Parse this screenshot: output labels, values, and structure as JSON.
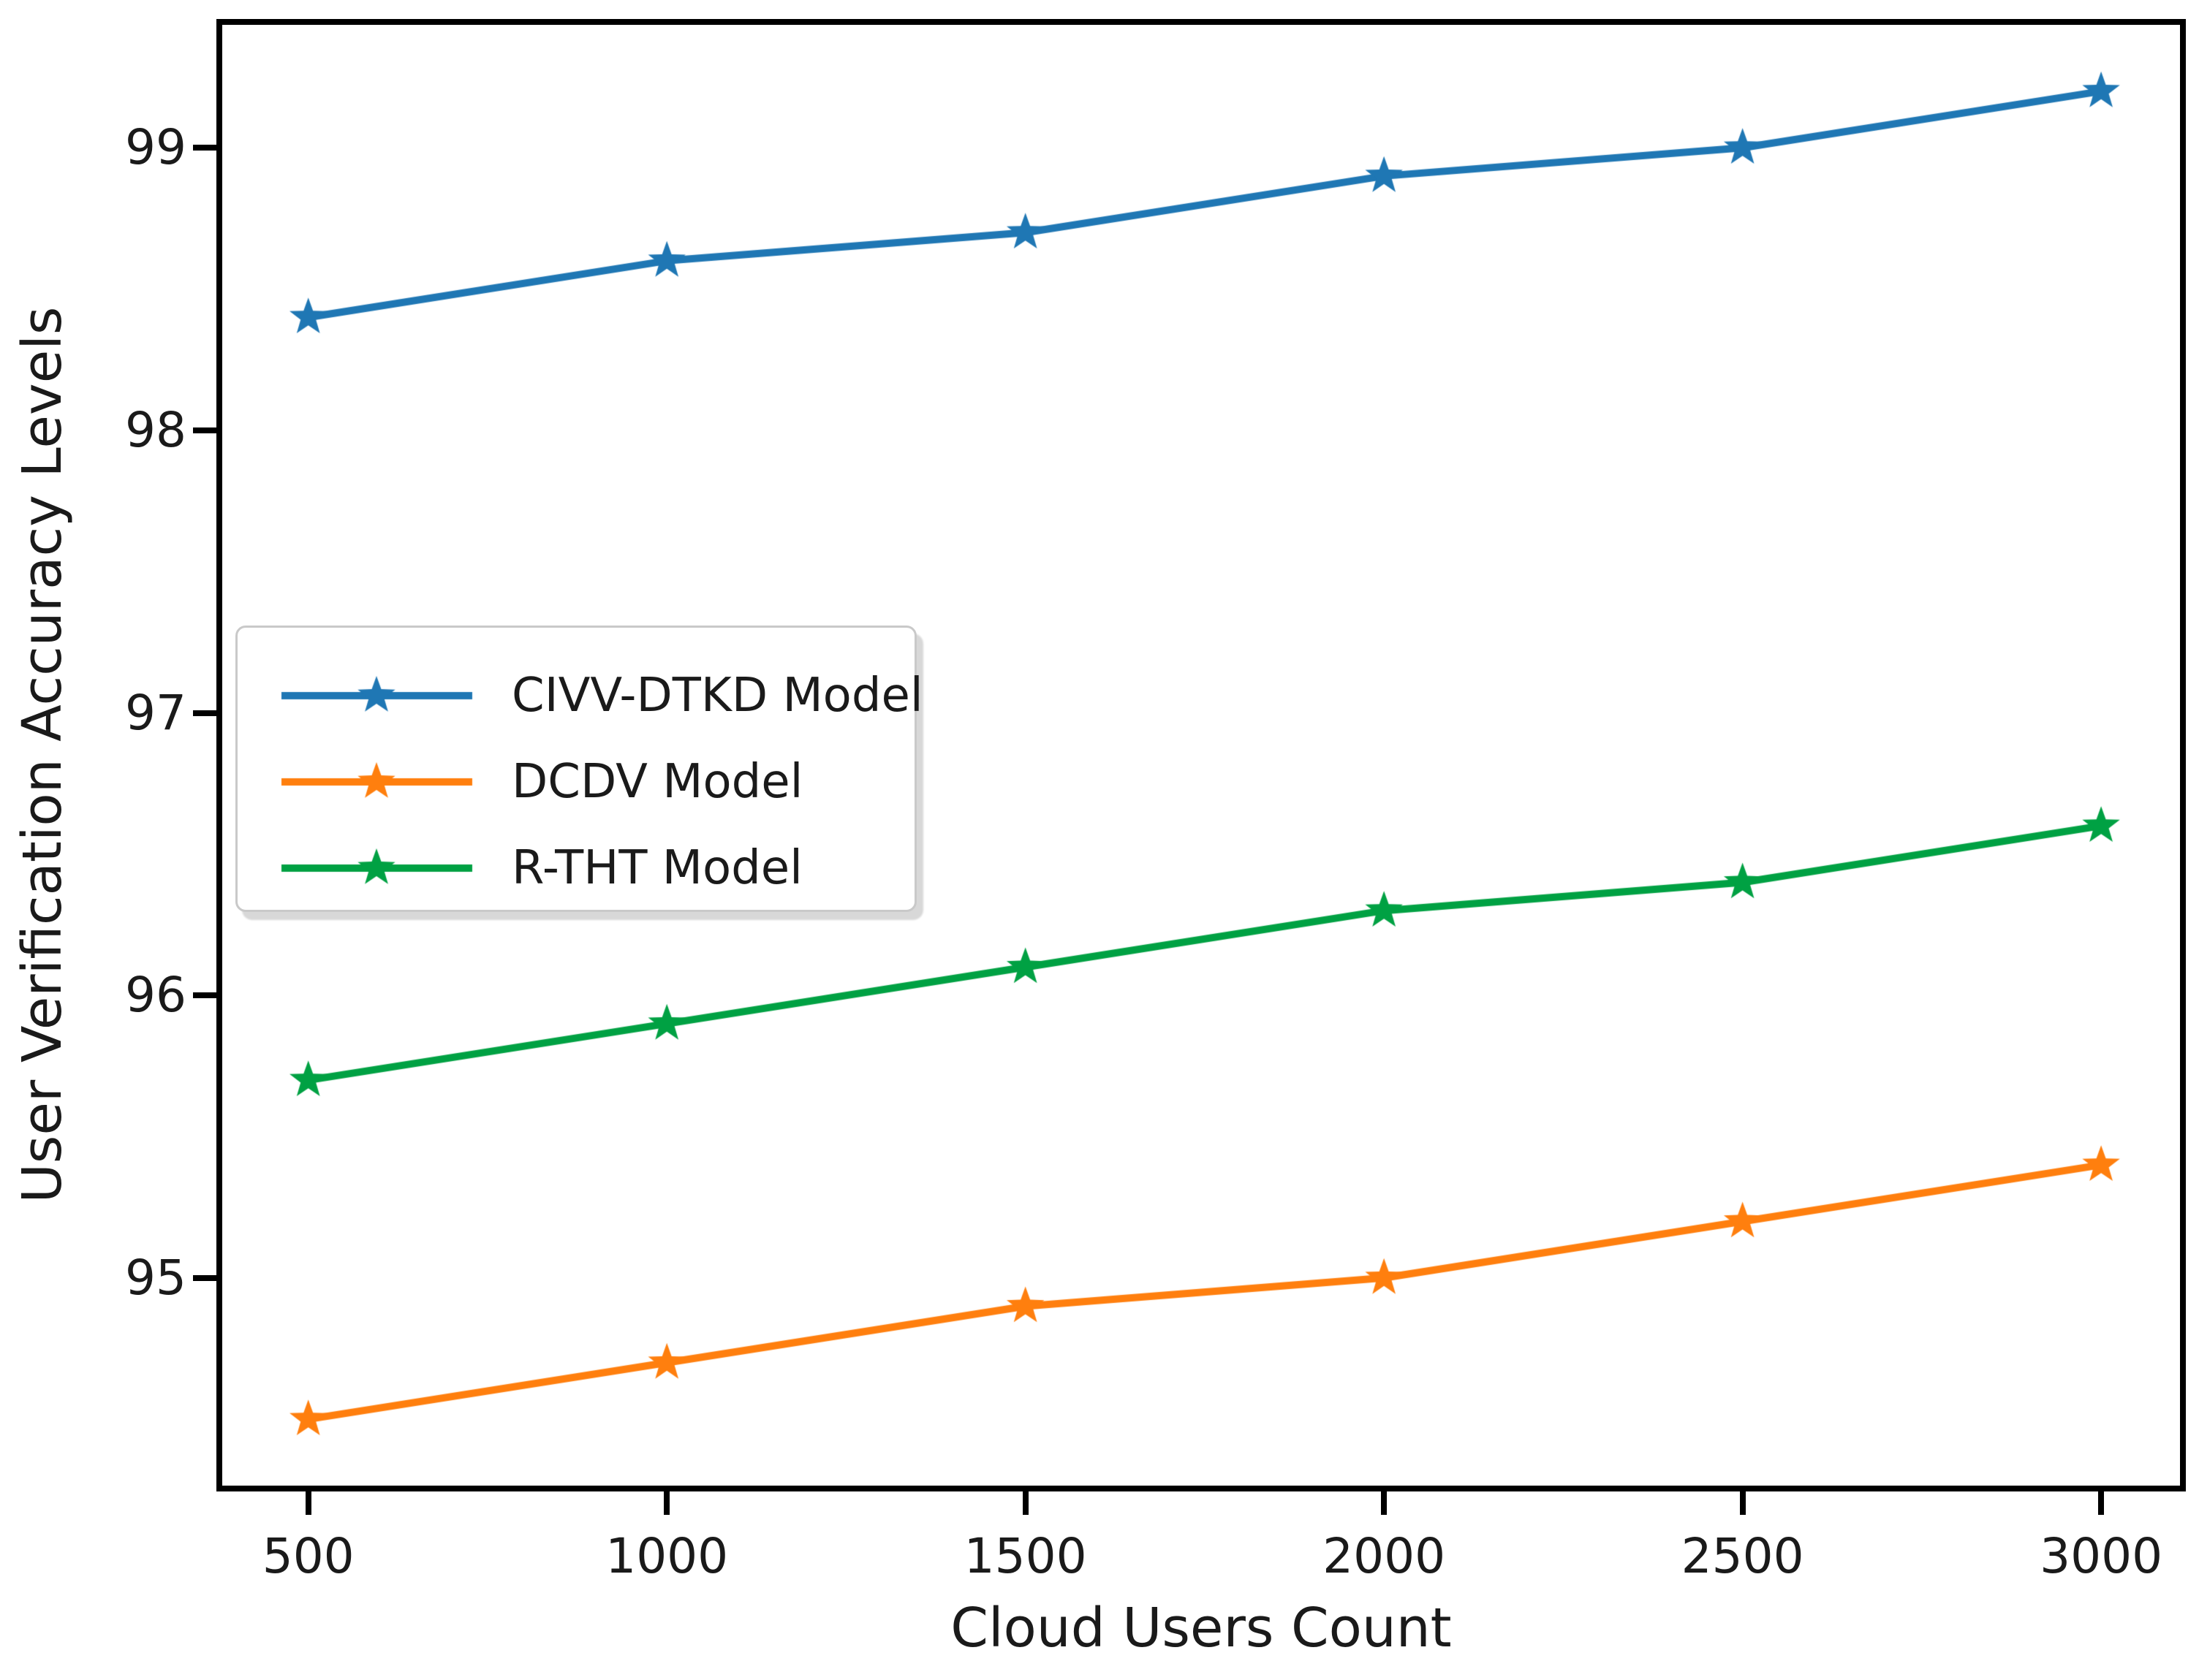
{
  "figure": {
    "background_color": "#ffffff",
    "spine_color": "#000000",
    "text_color": "#1a1a1a"
  },
  "chart_data": {
    "type": "line",
    "title": "",
    "xlabel": "Cloud Users Count",
    "ylabel": "User Verification Accuracy Levels",
    "x": [
      500,
      1000,
      1500,
      2000,
      2500,
      3000
    ],
    "x_tick_labels": [
      "500",
      "1000",
      "1500",
      "2000",
      "2500",
      "3000"
    ],
    "y_ticks": [
      95,
      96,
      97,
      98,
      99
    ],
    "y_tick_labels": [
      "95",
      "96",
      "97",
      "98",
      "99"
    ],
    "xlim": [
      380,
      3110
    ],
    "ylim": [
      94.265,
      99.435
    ],
    "grid": false,
    "marker": "star",
    "line_width": 10,
    "legend_position": "center-left",
    "series": [
      {
        "name": "CIVV-DTKD Model",
        "color": "#1f77b4",
        "values": [
          98.4,
          98.6,
          98.7,
          98.9,
          99.0,
          99.2
        ]
      },
      {
        "name": "DCDV Model",
        "color": "#ff7f0e",
        "values": [
          94.5,
          94.7,
          94.9,
          95.0,
          95.2,
          95.4
        ]
      },
      {
        "name": "R-THT Model",
        "color": "#00a143",
        "values": [
          95.7,
          95.9,
          96.1,
          96.3,
          96.4,
          96.6
        ]
      }
    ]
  }
}
